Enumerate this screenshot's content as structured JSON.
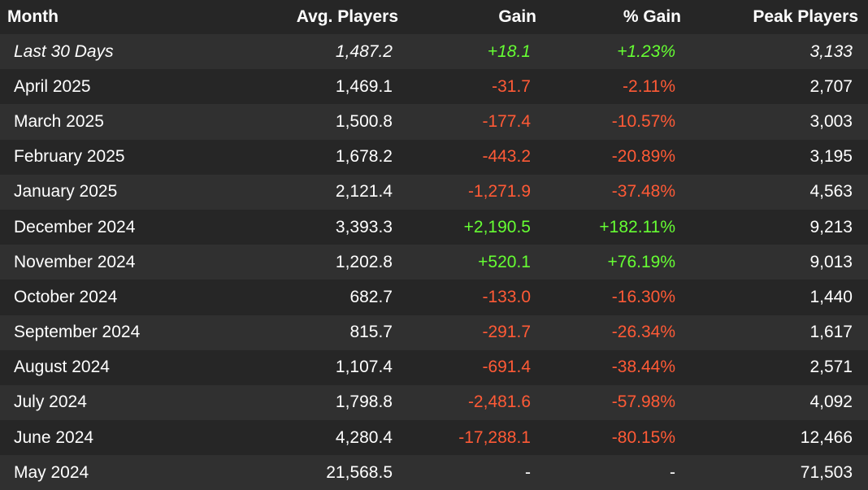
{
  "columns": {
    "month": "Month",
    "avg_players": "Avg. Players",
    "gain": "Gain",
    "pct_gain": "% Gain",
    "peak_players": "Peak Players"
  },
  "rows": [
    {
      "month": "Last 30 Days",
      "avg": "1,487.2",
      "gain": "+18.1",
      "pct": "+1.23%",
      "peak": "3,133",
      "trend": "pos"
    },
    {
      "month": "April 2025",
      "avg": "1,469.1",
      "gain": "-31.7",
      "pct": "-2.11%",
      "peak": "2,707",
      "trend": "neg"
    },
    {
      "month": "March 2025",
      "avg": "1,500.8",
      "gain": "-177.4",
      "pct": "-10.57%",
      "peak": "3,003",
      "trend": "neg"
    },
    {
      "month": "February 2025",
      "avg": "1,678.2",
      "gain": "-443.2",
      "pct": "-20.89%",
      "peak": "3,195",
      "trend": "neg"
    },
    {
      "month": "January 2025",
      "avg": "2,121.4",
      "gain": "-1,271.9",
      "pct": "-37.48%",
      "peak": "4,563",
      "trend": "neg"
    },
    {
      "month": "December 2024",
      "avg": "3,393.3",
      "gain": "+2,190.5",
      "pct": "+182.11%",
      "peak": "9,213",
      "trend": "pos"
    },
    {
      "month": "November 2024",
      "avg": "1,202.8",
      "gain": "+520.1",
      "pct": "+76.19%",
      "peak": "9,013",
      "trend": "pos"
    },
    {
      "month": "October 2024",
      "avg": "682.7",
      "gain": "-133.0",
      "pct": "-16.30%",
      "peak": "1,440",
      "trend": "neg"
    },
    {
      "month": "September 2024",
      "avg": "815.7",
      "gain": "-291.7",
      "pct": "-26.34%",
      "peak": "1,617",
      "trend": "neg"
    },
    {
      "month": "August 2024",
      "avg": "1,107.4",
      "gain": "-691.4",
      "pct": "-38.44%",
      "peak": "2,571",
      "trend": "neg"
    },
    {
      "month": "July 2024",
      "avg": "1,798.8",
      "gain": "-2,481.6",
      "pct": "-57.98%",
      "peak": "4,092",
      "trend": "neg"
    },
    {
      "month": "June 2024",
      "avg": "4,280.4",
      "gain": "-17,288.1",
      "pct": "-80.15%",
      "peak": "12,466",
      "trend": "neg"
    },
    {
      "month": "May 2024",
      "avg": "21,568.5",
      "gain": "-",
      "pct": "-",
      "peak": "71,503",
      "trend": "neutral"
    }
  ],
  "colors": {
    "background": "#262626",
    "row_alt": "#303030",
    "positive": "#66ff33",
    "negative": "#ff5a36",
    "text": "#ffffff"
  }
}
